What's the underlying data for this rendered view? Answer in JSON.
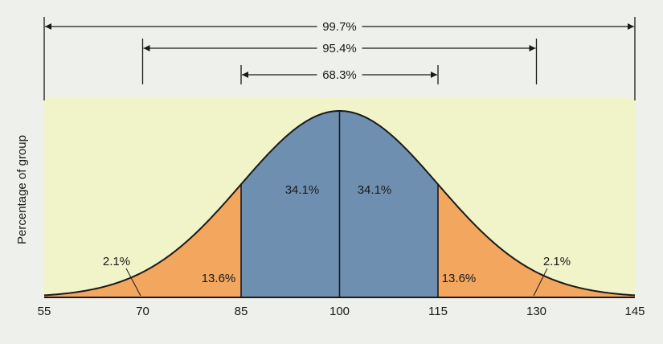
{
  "chart_data": {
    "type": "area",
    "title": "",
    "xlabel": "",
    "ylabel": "Percentage of group",
    "x_ticks": [
      55,
      70,
      85,
      100,
      115,
      130,
      145
    ],
    "xlim": [
      55,
      145
    ],
    "distribution": {
      "mean": 100,
      "sd": 15
    },
    "regions": [
      {
        "from": 55,
        "to": 70,
        "label": "2.1%",
        "value": 2.1,
        "color": "#f2a65e"
      },
      {
        "from": 70,
        "to": 85,
        "label": "13.6%",
        "value": 13.6,
        "color": "#f2a65e"
      },
      {
        "from": 85,
        "to": 100,
        "label": "34.1%",
        "value": 34.1,
        "color": "#6f8fb0"
      },
      {
        "from": 100,
        "to": 115,
        "label": "34.1%",
        "value": 34.1,
        "color": "#6f8fb0"
      },
      {
        "from": 115,
        "to": 130,
        "label": "13.6%",
        "value": 13.6,
        "color": "#f2a65e"
      },
      {
        "from": 130,
        "to": 145,
        "label": "2.1%",
        "value": 2.1,
        "color": "#f2a65e"
      }
    ],
    "ranges": [
      {
        "from": 55,
        "to": 145,
        "label": "99.7%"
      },
      {
        "from": 70,
        "to": 130,
        "label": "95.4%"
      },
      {
        "from": 85,
        "to": 115,
        "label": "68.3%"
      }
    ],
    "colors": {
      "plot_background": "#f1f3c8",
      "page_background": "#eef0ec",
      "tails": "#f2a65e",
      "center": "#6f8fb0",
      "line": "#1a1a1a"
    }
  }
}
